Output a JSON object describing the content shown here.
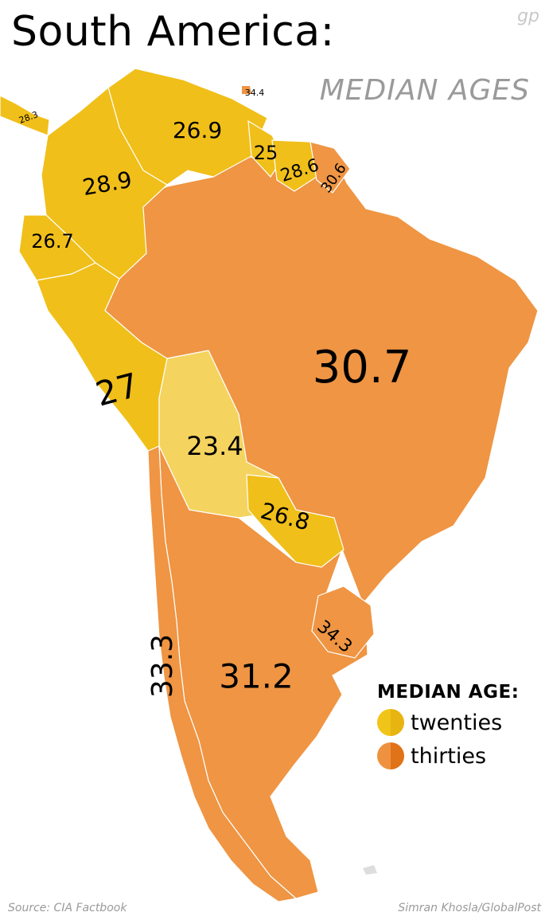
{
  "title": "South America:",
  "subtitle": "MEDIAN AGES",
  "logo": "gp",
  "source": "Source: CIA Factbook",
  "credit": "Simran Khosla/GlobalPost",
  "legend": {
    "title": "MEDIAN AGE:",
    "items": [
      {
        "label": "twenties",
        "color_left": "#f0c419",
        "color_right": "#e8b410"
      },
      {
        "label": "thirties",
        "color_left": "#ee9240",
        "color_right": "#e07218"
      }
    ]
  },
  "colors": {
    "twenties": "#f0bf19",
    "twenties_light": "#f5d35f",
    "thirties": "#ef9543"
  },
  "countries": [
    {
      "name": "Panama",
      "median_age": "28.3",
      "group": "twenties"
    },
    {
      "name": "Trinidad and Tobago",
      "median_age": "34.4",
      "group": "thirties"
    },
    {
      "name": "Venezuela",
      "median_age": "26.9",
      "group": "twenties"
    },
    {
      "name": "Guyana",
      "median_age": "25",
      "group": "twenties"
    },
    {
      "name": "Suriname",
      "median_age": "28.6",
      "group": "twenties"
    },
    {
      "name": "French Guiana",
      "median_age": "30.6",
      "group": "thirties"
    },
    {
      "name": "Colombia",
      "median_age": "28.9",
      "group": "twenties"
    },
    {
      "name": "Ecuador",
      "median_age": "26.7",
      "group": "twenties"
    },
    {
      "name": "Peru",
      "median_age": "27",
      "group": "twenties"
    },
    {
      "name": "Brazil",
      "median_age": "30.7",
      "group": "thirties"
    },
    {
      "name": "Bolivia",
      "median_age": "23.4",
      "group": "twenties"
    },
    {
      "name": "Paraguay",
      "median_age": "26.8",
      "group": "twenties"
    },
    {
      "name": "Chile",
      "median_age": "33.3",
      "group": "thirties"
    },
    {
      "name": "Argentina",
      "median_age": "31.2",
      "group": "thirties"
    },
    {
      "name": "Uruguay",
      "median_age": "34.3",
      "group": "thirties"
    }
  ]
}
